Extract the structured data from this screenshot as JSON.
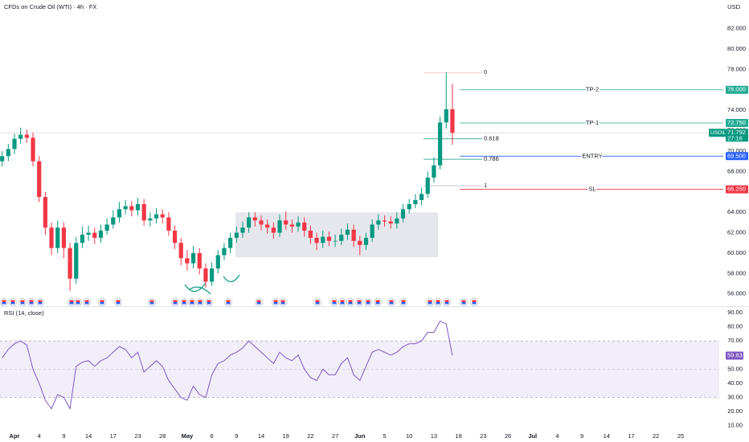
{
  "chart_data": {
    "type": "candlestick",
    "title": "CFDs on Crude Oil (WTI) · 4h · FX",
    "currency": "USD",
    "up_color": "#089981",
    "down_color": "#f23645",
    "categories": [
      null,
      null,
      "Apr",
      null,
      null,
      null,
      "4",
      null,
      null,
      null,
      "9",
      null,
      null,
      null,
      "14",
      null,
      null,
      null,
      "17",
      null,
      null,
      null,
      "23",
      null,
      null,
      null,
      "28",
      null,
      null,
      null,
      "May",
      null,
      null,
      null,
      "6",
      null,
      null,
      null,
      "9",
      null,
      null,
      null,
      "14",
      null,
      null,
      null,
      "19",
      null,
      null,
      null,
      "22",
      null,
      null,
      null,
      "27",
      null,
      null,
      null,
      "Jun",
      null,
      null,
      null,
      "5",
      null,
      null,
      null,
      "10",
      null,
      null,
      null,
      "13",
      null,
      null,
      null,
      "18",
      null,
      null,
      null,
      "23",
      null,
      null,
      null,
      "26",
      null,
      null,
      null,
      "Jul",
      null,
      null,
      null,
      "4",
      null,
      null,
      null,
      "9",
      null,
      null,
      null,
      "14",
      null,
      null,
      null,
      "17",
      null,
      null,
      null,
      "22",
      null,
      null,
      null,
      "25"
    ],
    "open": [
      69,
      69.5,
      70.2,
      71.2,
      71.6,
      71.3,
      69,
      65.5,
      62.5,
      60.5,
      62.5,
      60.5,
      57.5,
      61,
      61.8,
      62,
      61.5,
      62.2,
      62.8,
      63.5,
      64.3,
      64.6,
      64.2,
      64.8,
      63.2,
      63.4,
      63.8,
      63.5,
      62.2,
      61,
      59.5,
      59,
      60,
      58.5,
      57.2,
      58.5,
      59.8,
      60.5,
      61.5,
      62,
      62.5,
      63.5,
      63.2,
      62.8,
      62.5,
      62,
      63.2,
      62.8,
      62.6,
      63,
      62.2,
      61.5,
      61,
      61.6,
      61.2,
      61.2,
      61.8,
      62.3,
      61.2,
      60.8,
      61.5,
      62.8,
      63.2,
      63.1,
      62.9,
      63.4,
      64.3,
      64.8,
      65.2,
      65.8,
      67.4,
      68.6,
      72.8,
      74.1,
      null,
      null,
      null,
      null,
      null,
      null,
      null,
      null,
      null,
      null,
      null,
      null,
      null,
      null,
      null,
      null,
      null,
      null,
      null,
      null,
      null,
      null,
      null,
      null,
      null,
      null,
      null,
      null,
      null,
      null,
      null,
      null,
      null,
      null,
      null,
      null,
      null
    ],
    "high": [
      70,
      70.7,
      71.7,
      72.3,
      72.1,
      71.8,
      69.5,
      66,
      63,
      63.2,
      63,
      61,
      61.6,
      62.6,
      62.7,
      62.5,
      62.8,
      63.4,
      64.2,
      65,
      65.2,
      65.1,
      65.4,
      65.3,
      64,
      64.4,
      64.3,
      64,
      62.7,
      61.5,
      60.3,
      60.7,
      60.5,
      59,
      59.1,
      60.3,
      61,
      62,
      62.6,
      63.1,
      64,
      64,
      63.7,
      63.3,
      63,
      63.8,
      64.1,
      63.3,
      63.6,
      63.5,
      62.7,
      62,
      62.2,
      62.1,
      61.8,
      62.4,
      62.9,
      62.8,
      61.7,
      62,
      63.3,
      63.8,
      63.7,
      63.6,
      64,
      64.8,
      65.3,
      65.8,
      66.4,
      68,
      69.4,
      73.4,
      77.7,
      76.6,
      null,
      null,
      null,
      null,
      null,
      null,
      null,
      null,
      null,
      null,
      null,
      null,
      null,
      null,
      null,
      null,
      null,
      null,
      null,
      null,
      null,
      null,
      null,
      null,
      null,
      null,
      null,
      null,
      null,
      null,
      null,
      null,
      null,
      null,
      null,
      null,
      null
    ],
    "low": [
      68.5,
      69,
      69.7,
      70.7,
      70.8,
      68.5,
      65,
      61.8,
      59.8,
      60,
      59.5,
      56.3,
      57,
      60.5,
      61.2,
      60.9,
      61,
      61.8,
      62.4,
      63,
      63.8,
      63.6,
      63.7,
      62.7,
      62.6,
      62.9,
      62.9,
      61.7,
      60.4,
      58.8,
      58.3,
      58.5,
      57.9,
      56.6,
      56.8,
      58,
      59.3,
      60,
      61,
      61.5,
      62,
      62.6,
      62.2,
      61.9,
      61.4,
      61.6,
      62.3,
      62,
      62.1,
      61.6,
      60.9,
      60.3,
      60.5,
      60.7,
      60.6,
      60.8,
      61.3,
      60.6,
      59.8,
      60.3,
      61.1,
      62.3,
      62.6,
      62.4,
      62.4,
      63,
      63.9,
      64.4,
      64.7,
      65.4,
      66.9,
      68.2,
      72.2,
      70.6,
      null,
      null,
      null,
      null,
      null,
      null,
      null,
      null,
      null,
      null,
      null,
      null,
      null,
      null,
      null,
      null,
      null,
      null,
      null,
      null,
      null,
      null,
      null,
      null,
      null,
      null,
      null,
      null,
      null,
      null,
      null,
      null,
      null,
      null,
      null,
      null,
      null
    ],
    "close": [
      69.5,
      70.2,
      71.2,
      71.6,
      71.3,
      69,
      65.5,
      62.5,
      60.5,
      62.5,
      60.5,
      57.5,
      61,
      61.8,
      62,
      61.5,
      62.2,
      62.8,
      63.5,
      64.3,
      64.6,
      64.2,
      64.8,
      63.2,
      63.4,
      63.8,
      63.5,
      62.2,
      61,
      59.5,
      59,
      60,
      58.5,
      57.2,
      58.5,
      59.8,
      60.5,
      61.5,
      62,
      62.5,
      63.5,
      63.2,
      62.8,
      62.5,
      62,
      63.2,
      62.8,
      62.6,
      63,
      62.2,
      61.5,
      61,
      61.6,
      61.2,
      61.2,
      61.8,
      62.3,
      61.2,
      60.8,
      61.5,
      62.8,
      63.2,
      63.1,
      62.9,
      63.4,
      64.3,
      64.8,
      65.2,
      65.8,
      67.4,
      68.6,
      72.8,
      74.1,
      71.79,
      null,
      null,
      null,
      null,
      null,
      null,
      null,
      null,
      null,
      null,
      null,
      null,
      null,
      null,
      null,
      null,
      null,
      null,
      null,
      null,
      null,
      null,
      null,
      null,
      null,
      null,
      null,
      null,
      null,
      null,
      null,
      null,
      null,
      null,
      null,
      null,
      null
    ],
    "ylim": [
      54.8,
      84.8
    ],
    "yticks": [
      {
        "value": 82,
        "label": "82.000"
      },
      {
        "value": 80,
        "label": "80.000"
      },
      {
        "value": 78,
        "label": "78.000"
      },
      {
        "value": 76,
        "label": "76.000"
      },
      {
        "value": 74,
        "label": "74.000"
      },
      {
        "value": 72,
        "label": "72.000"
      },
      {
        "value": 70,
        "label": "70.000"
      },
      {
        "value": 68,
        "label": "68.000"
      },
      {
        "value": 66,
        "label": "66.000"
      },
      {
        "value": 64,
        "label": "64.000"
      },
      {
        "value": 62,
        "label": "62.000"
      },
      {
        "value": 60,
        "label": "60.000"
      },
      {
        "value": 58,
        "label": "58.000"
      },
      {
        "value": 56,
        "label": "56.000"
      }
    ],
    "last_price": {
      "symbol": "USOIL",
      "value": 71.792,
      "countdown": "27:16",
      "color": "#089981"
    },
    "levels": [
      {
        "name": "TP-2",
        "value": 76,
        "label": "76.000",
        "color": "#22ab94"
      },
      {
        "name": "TP-1",
        "value": 72.75,
        "label": "72.750",
        "color": "#22ab94"
      },
      {
        "name": "ENTRY",
        "value": 69.5,
        "label": "69.500",
        "color": "#2962ff"
      },
      {
        "name": "SL",
        "value": 66.25,
        "label": "66.250",
        "color": "#f23645"
      }
    ],
    "fib": [
      {
        "label": "0",
        "value": 77.7,
        "color": "#f7a8ad",
        "text_color": "#b2b5be"
      },
      {
        "label": "0.618",
        "value": 71.2,
        "color": "#089981",
        "text_color": "#22ab94"
      },
      {
        "label": "0.786",
        "value": 69.2,
        "color": "#089981",
        "text_color": "#22ab94"
      },
      {
        "label": "1",
        "value": 66.6,
        "color": "#b2b5be",
        "text_color": "#b2b5be"
      }
    ],
    "box": {
      "top": 64,
      "bottom": 59.6
    },
    "rsi": {
      "label": "RSI (14, close)",
      "color": "#7e57c2",
      "values": [
        58,
        64,
        68,
        70,
        67,
        50,
        40,
        28,
        22,
        32,
        30,
        22,
        52,
        55,
        56,
        52,
        56,
        58,
        62,
        66,
        64,
        58,
        62,
        48,
        52,
        56,
        52,
        42,
        36,
        30,
        28,
        38,
        32,
        30,
        46,
        54,
        56,
        60,
        62,
        65,
        70,
        66,
        62,
        58,
        54,
        62,
        58,
        56,
        60,
        50,
        44,
        42,
        50,
        46,
        46,
        54,
        58,
        46,
        42,
        52,
        62,
        64,
        62,
        60,
        62,
        66,
        68,
        68,
        70,
        76,
        76,
        84,
        82,
        59.63,
        null,
        null,
        null,
        null,
        null,
        null,
        null,
        null,
        null,
        null,
        null,
        null,
        null,
        null,
        null,
        null,
        null,
        null,
        null,
        null,
        null,
        null,
        null,
        null,
        null,
        null,
        null,
        null,
        null,
        null,
        null,
        null,
        null,
        null,
        null,
        null,
        null
      ],
      "last": 59.63,
      "bands": [
        70,
        30
      ],
      "mid": 50,
      "ylim": [
        7,
        94
      ],
      "yticks": [
        {
          "value": 90,
          "label": "90.00"
        },
        {
          "value": 80,
          "label": "80.00"
        },
        {
          "value": 70,
          "label": "70.00"
        },
        {
          "value": 60,
          "label": "60.00"
        },
        {
          "value": 50,
          "label": "50.00"
        },
        {
          "value": 40,
          "label": "40.00"
        },
        {
          "value": 30,
          "label": "30.00"
        },
        {
          "value": 20,
          "label": "20.00"
        },
        {
          "value": 10,
          "label": "10.00"
        }
      ]
    }
  }
}
